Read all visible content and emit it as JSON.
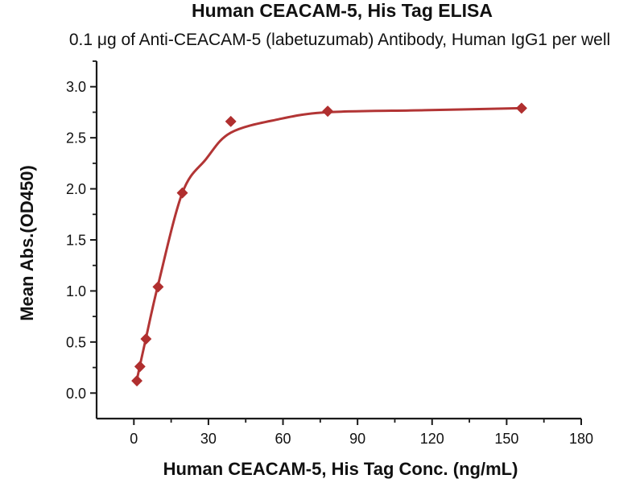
{
  "chart_data": {
    "type": "scatter",
    "title": "Human CEACAM-5, His Tag ELISA",
    "subtitle": "0.1 μg of Anti-CEACAM-5 (labetuzumab) Antibody, Human IgG1 per well",
    "xlabel": "Human CEACAM-5, His Tag Conc. (ng/mL)",
    "ylabel": "Mean Abs.(OD450)",
    "x": [
      1.22,
      2.44,
      4.88,
      9.75,
      19.5,
      39,
      78,
      156
    ],
    "y": [
      0.12,
      0.26,
      0.53,
      1.04,
      1.96,
      2.66,
      2.76,
      2.79
    ],
    "fit_curve": {
      "x": [
        1.22,
        2.44,
        4.88,
        9.75,
        19.5,
        29,
        39,
        58,
        78,
        117,
        156
      ],
      "y": [
        0.13,
        0.27,
        0.54,
        1.06,
        1.96,
        2.29,
        2.55,
        2.68,
        2.75,
        2.77,
        2.79
      ]
    },
    "x_axis": {
      "min": -15,
      "max": 180,
      "major_ticks": [
        0,
        30,
        60,
        90,
        120,
        150,
        180
      ],
      "minor_ticks": [
        15,
        45,
        75,
        105,
        135,
        165
      ],
      "tick_labels": [
        "0",
        "30",
        "60",
        "90",
        "120",
        "150",
        "180"
      ]
    },
    "y_axis": {
      "min": -0.25,
      "max": 3.25,
      "major_ticks": [
        0.0,
        0.5,
        1.0,
        1.5,
        2.0,
        2.5,
        3.0
      ],
      "minor_ticks": [
        0.25,
        0.75,
        1.25,
        1.75,
        2.25,
        2.75,
        3.25
      ],
      "tick_labels": [
        "0.0",
        "0.5",
        "1.0",
        "1.5",
        "2.0",
        "2.5",
        "3.0"
      ]
    },
    "marker": "diamond",
    "grid": false,
    "legend": "none",
    "colors": {
      "curve": "#B23535",
      "marker": "#B02F2F",
      "axis": "#1a1a1a",
      "text": "#111111",
      "background": "#ffffff"
    }
  }
}
